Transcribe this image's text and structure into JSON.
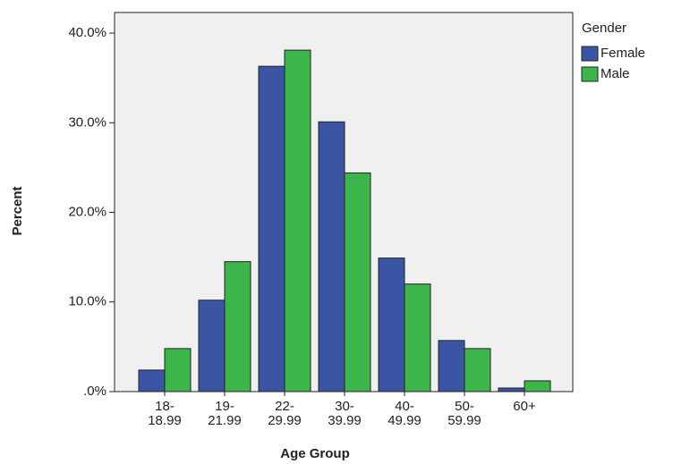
{
  "chart_data": {
    "type": "bar",
    "x_label": "Age Group",
    "y_label": "Percent",
    "legend_title": "Gender",
    "legend": "right",
    "categories": [
      "18-\n18.99",
      "19-\n21.99",
      "22-\n29.99",
      "30-\n39.99",
      "40-\n49.99",
      "50-\n59.99",
      "60+"
    ],
    "series": [
      {
        "name": "Female",
        "color": "#3b55a5",
        "values": [
          2.4,
          10.2,
          36.3,
          30.1,
          14.9,
          5.7,
          0.4
        ]
      },
      {
        "name": "Male",
        "color": "#3cb64a",
        "values": [
          4.8,
          14.5,
          38.1,
          24.4,
          12.0,
          4.8,
          1.2
        ]
      }
    ],
    "ylim": [
      0,
      42.3
    ],
    "yticks": [
      {
        "value": 0,
        "label": ".0%"
      },
      {
        "value": 10,
        "label": "10.0%"
      },
      {
        "value": 20,
        "label": "20.0%"
      },
      {
        "value": 30,
        "label": "30.0%"
      },
      {
        "value": 40,
        "label": "40.0%"
      }
    ],
    "grid": false
  }
}
